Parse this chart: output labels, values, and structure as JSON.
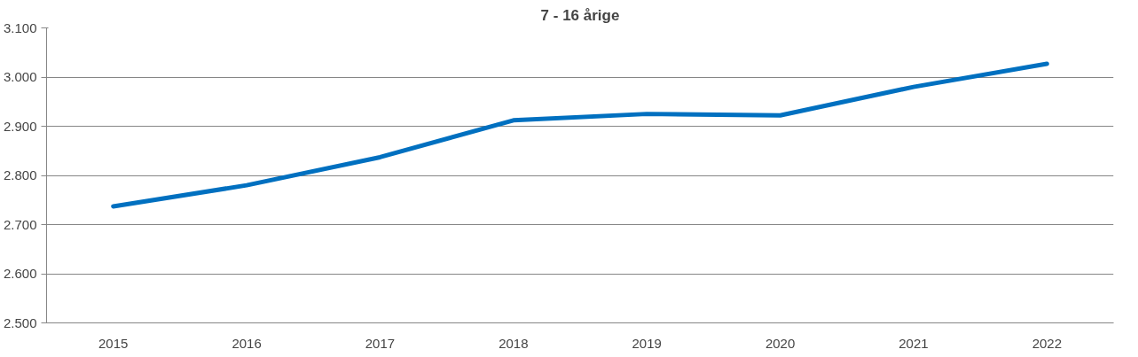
{
  "chart_data": {
    "type": "line",
    "title": "7 - 16 årige",
    "categories": [
      "2015",
      "2016",
      "2017",
      "2018",
      "2019",
      "2020",
      "2021",
      "2022"
    ],
    "series": [
      {
        "color": "#0070c0",
        "values": [
          2737,
          2780,
          2837,
          2912,
          2925,
          2922,
          2980,
          3027
        ]
      }
    ],
    "ylim": [
      2500,
      3100
    ],
    "yticks": [
      {
        "value": 2500,
        "label": "2.500"
      },
      {
        "value": 2600,
        "label": "2.600"
      },
      {
        "value": 2700,
        "label": "2.700"
      },
      {
        "value": 2800,
        "label": "2.800"
      },
      {
        "value": 2900,
        "label": "2.900"
      },
      {
        "value": 3000,
        "label": "3.000"
      },
      {
        "value": 3100,
        "label": "3.100"
      }
    ],
    "grid": "y"
  }
}
